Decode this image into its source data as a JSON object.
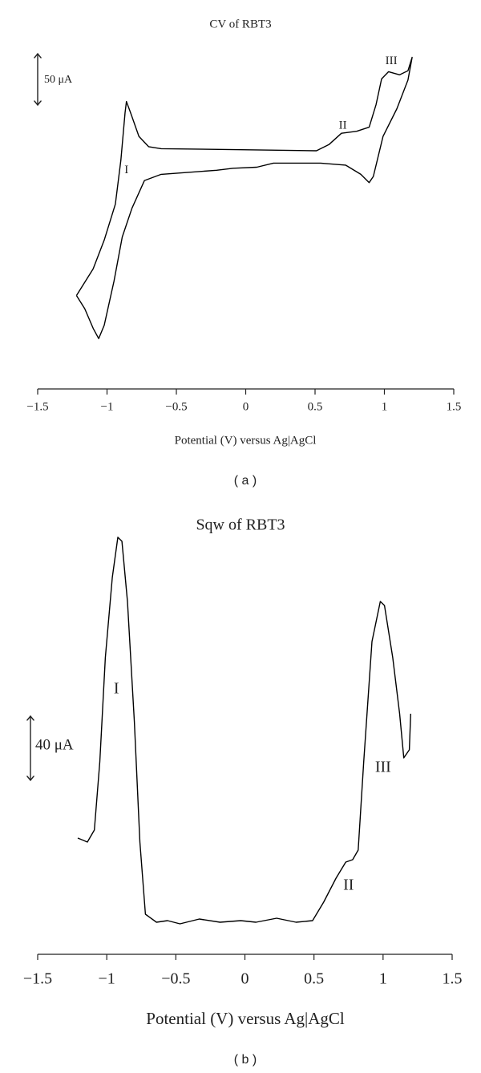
{
  "chart_data": [
    {
      "type": "line",
      "title": "CV of RBT3",
      "xlabel": "Potential (V) versus Ag|AgCl",
      "panel_label": "( a )",
      "xlim": [
        -1.5,
        1.5
      ],
      "ylim": [
        -110,
        190
      ],
      "xticks": [
        {
          "value": -1.5,
          "label": "−1.5"
        },
        {
          "value": -1,
          "label": "−1"
        },
        {
          "value": -0.5,
          "label": "−0.5"
        },
        0,
        0.5,
        1,
        1.5
      ],
      "scale_bar": {
        "value": 50,
        "label": "50 μA"
      },
      "series": [
        {
          "color": "#000000",
          "x": [
            -1.22,
            -1.1,
            -1.02,
            -0.94,
            -0.9,
            -0.87,
            -0.86,
            -0.83,
            -0.77,
            -0.7,
            -0.61,
            -0.03,
            0.51,
            0.6,
            0.69,
            0.8,
            0.89,
            0.94,
            0.98,
            1.03,
            1.11,
            1.17,
            1.2,
            1.17,
            1.09,
            0.99,
            0.92,
            0.89,
            0.83,
            0.72,
            0.54,
            0.2,
            0.08,
            -0.09,
            -0.21,
            -0.61,
            -0.73,
            -0.82,
            -0.89,
            -0.95,
            -1.02,
            -1.06,
            -1.1,
            -1.16,
            -1.22
          ],
          "values": [
            -51,
            -25,
            3,
            38,
            81,
            127,
            138,
            127,
            104,
            94,
            92,
            91,
            90,
            96,
            107,
            109,
            113,
            135,
            160,
            167,
            164,
            168,
            181,
            159,
            131,
            104,
            65,
            59,
            67,
            76,
            78,
            78,
            74,
            73,
            71,
            67,
            61,
            34,
            6,
            -37,
            -80,
            -93,
            -83,
            -64,
            -51
          ]
        }
      ],
      "annotations": [
        {
          "text": "I",
          "x": -0.86,
          "y": 71
        },
        {
          "text": "II",
          "x": 0.7,
          "y": 114
        },
        {
          "text": "III",
          "x": 1.05,
          "y": 177
        }
      ]
    },
    {
      "type": "line",
      "title": "Sqw of RBT3",
      "xlabel": "Potential (V) versus Ag|AgCl",
      "panel_label": "( b )",
      "xlim": [
        -1.5,
        1.5
      ],
      "ylim": [
        0,
        250
      ],
      "xticks": [
        {
          "value": -1.5,
          "label": "−1.5"
        },
        {
          "value": -1,
          "label": "−1"
        },
        {
          "value": -0.5,
          "label": "−0.5"
        },
        0,
        0.5,
        1,
        1.5
      ],
      "scale_bar": {
        "value": 40,
        "label": "40 μA"
      },
      "series": [
        {
          "color": "#000000",
          "x": [
            -1.21,
            -1.14,
            -1.09,
            -1.05,
            -1.01,
            -0.96,
            -0.92,
            -0.89,
            -0.85,
            -0.8,
            -0.76,
            -0.72,
            -0.64,
            -0.56,
            -0.47,
            -0.33,
            -0.18,
            -0.03,
            0.08,
            0.23,
            0.37,
            0.49,
            0.57,
            0.66,
            0.73,
            0.78,
            0.82,
            0.86,
            0.92,
            0.98,
            1.01,
            1.07,
            1.12,
            1.15,
            1.19,
            1.2
          ],
          "values": [
            57.5,
            55,
            62.5,
            105,
            170,
            220,
            245,
            242.5,
            205,
            130,
            55,
            10,
            5,
            6,
            4,
            7,
            5,
            6,
            5,
            7.5,
            5,
            6,
            17.5,
            32.5,
            42.5,
            44,
            50,
            105,
            180,
            205,
            202.5,
            170,
            135,
            107.5,
            112.5,
            135
          ]
        }
      ],
      "annotations": [
        {
          "text": "I",
          "x": -0.93,
          "y": 150
        },
        {
          "text": "II",
          "x": 0.75,
          "y": 27.5
        },
        {
          "text": "III",
          "x": 1.0,
          "y": 101
        }
      ]
    }
  ]
}
